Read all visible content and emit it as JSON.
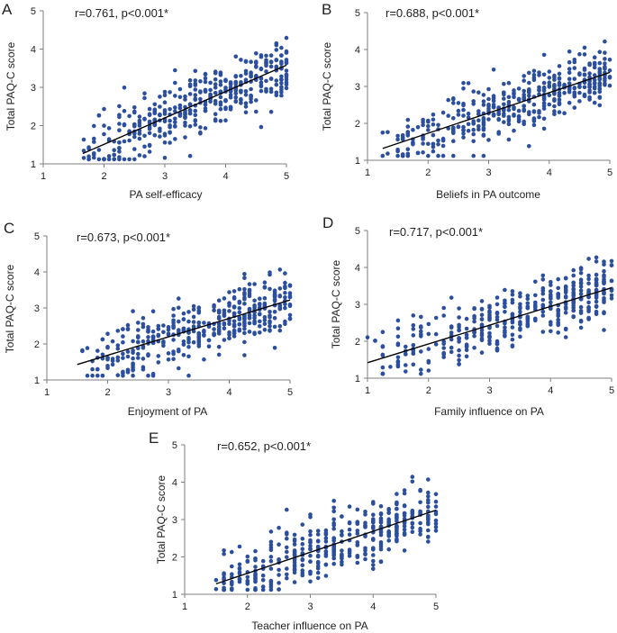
{
  "figure": {
    "marker_color": "#2b4f9e",
    "line_color": "#000000",
    "axis_color": "#7f7f7f",
    "text_color": "#222222"
  },
  "chart_data": [
    {
      "type": "scatter",
      "panel_label": "A",
      "annotation": "r=0.761, p<0.001*",
      "xlabel": "PA self-efficacy",
      "ylabel": "Total PAQ-C  score",
      "xlim": [
        1,
        5
      ],
      "ylim": [
        1,
        5
      ],
      "xticks": [
        "1",
        "2",
        "3",
        "4",
        "5"
      ],
      "yticks": [
        "1",
        "2",
        "3",
        "4",
        "5"
      ],
      "x_range": [
        1.6,
        5.0
      ],
      "trend": {
        "x": [
          1.65,
          5.0
        ],
        "y": [
          1.27,
          3.58
        ]
      },
      "spread": 0.38,
      "n_points": 420
    },
    {
      "type": "scatter",
      "panel_label": "B",
      "annotation": "r=0.688, p<0.001*",
      "xlabel": "Beliefs in PA outcome",
      "ylabel": "Total PAQ-C  score",
      "xlim": [
        1,
        5
      ],
      "ylim": [
        1,
        5
      ],
      "xticks": [
        "1",
        "2",
        "3",
        "4",
        "5"
      ],
      "yticks": [
        "1",
        "2",
        "3",
        "4",
        "5"
      ],
      "x_range": [
        1.2,
        5.0
      ],
      "trend": {
        "x": [
          1.25,
          5.0
        ],
        "y": [
          1.32,
          3.38
        ]
      },
      "spread": 0.42,
      "n_points": 420
    },
    {
      "type": "scatter",
      "panel_label": "C",
      "annotation": "r=0.673, p<0.001*",
      "xlabel": "Enjoyment of PA",
      "ylabel": "Total PAQ-C  score",
      "xlim": [
        1,
        5
      ],
      "ylim": [
        1,
        5
      ],
      "xticks": [
        "1",
        "2",
        "3",
        "4",
        "5"
      ],
      "yticks": [
        "1",
        "2",
        "3",
        "4",
        "5"
      ],
      "x_range": [
        1.5,
        5.0
      ],
      "trend": {
        "x": [
          1.5,
          5.0
        ],
        "y": [
          1.43,
          3.22
        ]
      },
      "spread": 0.42,
      "n_points": 420
    },
    {
      "type": "scatter",
      "panel_label": "D",
      "annotation": "r=0.717, p<0.001*",
      "xlabel": "Family influence on PA",
      "ylabel": "Total PAQ-C  score",
      "xlim": [
        1,
        5
      ],
      "ylim": [
        1,
        5
      ],
      "xticks": [
        "1",
        "2",
        "3",
        "4",
        "5"
      ],
      "yticks": [
        "1",
        "2",
        "3",
        "4",
        "5"
      ],
      "x_range": [
        1.0,
        5.0
      ],
      "trend": {
        "x": [
          1.0,
          5.0
        ],
        "y": [
          1.42,
          3.45
        ]
      },
      "spread": 0.4,
      "n_points": 420
    },
    {
      "type": "scatter",
      "panel_label": "E",
      "annotation": "r=0.652, p<0.001*",
      "xlabel": "Teacher influence on PA",
      "ylabel": "Total PAQ-C  score",
      "xlim": [
        1,
        5
      ],
      "ylim": [
        1,
        5
      ],
      "xticks": [
        "1",
        "2",
        "3",
        "4",
        "5"
      ],
      "yticks": [
        "1",
        "2",
        "3",
        "4",
        "5"
      ],
      "x_range": [
        1.5,
        5.0
      ],
      "trend": {
        "x": [
          1.5,
          5.0
        ],
        "y": [
          1.28,
          3.25
        ]
      },
      "spread": 0.42,
      "n_points": 420
    }
  ]
}
